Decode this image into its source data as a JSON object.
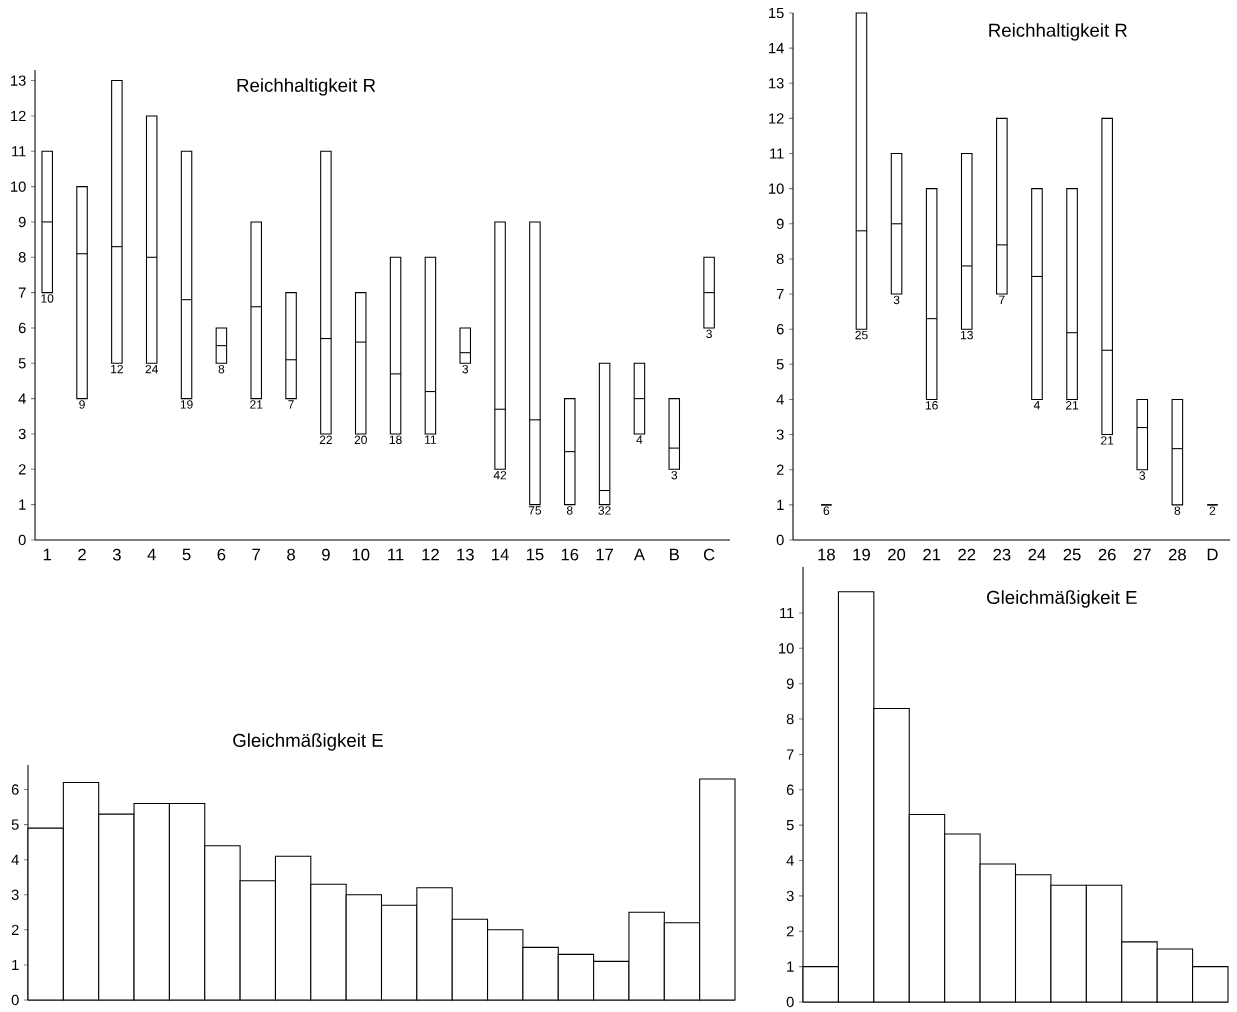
{
  "chart_data": [
    {
      "type": "box",
      "title": "Reichhaltigkeit R",
      "categories": [
        "1",
        "2",
        "3",
        "4",
        "5",
        "6",
        "7",
        "8",
        "9",
        "10",
        "11",
        "12",
        "13",
        "14",
        "15",
        "16",
        "17",
        "A",
        "B",
        "C"
      ],
      "boxes": [
        {
          "low": 7,
          "q1": 7,
          "median": 9.0,
          "q3": 11,
          "high": 11
        },
        {
          "low": 4,
          "q1": 4,
          "median": 8.1,
          "q3": 10,
          "high": 10
        },
        {
          "low": 5,
          "q1": 5,
          "median": 8.3,
          "q3": 13,
          "high": 13
        },
        {
          "low": 5,
          "q1": 5,
          "median": 8.0,
          "q3": 12,
          "high": 12
        },
        {
          "low": 4,
          "q1": 4,
          "median": 6.8,
          "q3": 11,
          "high": 11
        },
        {
          "low": 5,
          "q1": 5,
          "median": 5.5,
          "q3": 6,
          "high": 6
        },
        {
          "low": 4,
          "q1": 4,
          "median": 6.6,
          "q3": 9,
          "high": 9
        },
        {
          "low": 4,
          "q1": 4,
          "median": 5.1,
          "q3": 7,
          "high": 7
        },
        {
          "low": 3,
          "q1": 3,
          "median": 5.7,
          "q3": 11,
          "high": 11
        },
        {
          "low": 3,
          "q1": 3,
          "median": 5.6,
          "q3": 7,
          "high": 7
        },
        {
          "low": 3,
          "q1": 3,
          "median": 4.7,
          "q3": 8,
          "high": 8
        },
        {
          "low": 3,
          "q1": 3,
          "median": 4.2,
          "q3": 8,
          "high": 8
        },
        {
          "low": 5,
          "q1": 5,
          "median": 5.3,
          "q3": 6,
          "high": 6
        },
        {
          "low": 2,
          "q1": 2,
          "median": 3.7,
          "q3": 9,
          "high": 9
        },
        {
          "low": 1,
          "q1": 1,
          "median": 3.4,
          "q3": 9,
          "high": 9
        },
        {
          "low": 1,
          "q1": 1,
          "median": 2.5,
          "q3": 4,
          "high": 4
        },
        {
          "low": 1,
          "q1": 1,
          "median": 1.4,
          "q3": 5,
          "high": 5
        },
        {
          "low": 3,
          "q1": 3,
          "median": 4.0,
          "q3": 5,
          "high": 5
        },
        {
          "low": 2,
          "q1": 2,
          "median": 2.6,
          "q3": 4,
          "high": 4
        },
        {
          "low": 6,
          "q1": 6,
          "median": 7.0,
          "q3": 8,
          "high": 8
        }
      ],
      "annotations": [
        {
          "text": "10",
          "x": "1",
          "y": 7
        },
        {
          "text": "9",
          "x": "2",
          "y": 4
        },
        {
          "text": "12",
          "x": "3",
          "y": 5
        },
        {
          "text": "24",
          "x": "4",
          "y": 5
        },
        {
          "text": "19",
          "x": "5",
          "y": 4
        },
        {
          "text": "8",
          "x": "6",
          "y": 5
        },
        {
          "text": "21",
          "x": "7",
          "y": 4
        },
        {
          "text": "7",
          "x": "8",
          "y": 4
        },
        {
          "text": "22",
          "x": "9",
          "y": 3
        },
        {
          "text": "20",
          "x": "10",
          "y": 3
        },
        {
          "text": "18",
          "x": "11",
          "y": 3
        },
        {
          "text": "11",
          "x": "12",
          "y": 3
        },
        {
          "text": "3",
          "x": "13",
          "y": 5
        },
        {
          "text": "42",
          "x": "14",
          "y": 2
        },
        {
          "text": "75",
          "x": "15",
          "y": 1
        },
        {
          "text": "8",
          "x": "16",
          "y": 1
        },
        {
          "text": "32",
          "x": "17",
          "y": 1
        },
        {
          "text": "4",
          "x": "A",
          "y": 3
        },
        {
          "text": "3",
          "x": "B",
          "y": 2
        },
        {
          "text": "3",
          "x": "C",
          "y": 6
        }
      ],
      "ylim": [
        0,
        13.3
      ],
      "yticks": [
        0,
        1,
        2,
        3,
        4,
        5,
        6,
        7,
        8,
        9,
        10,
        11,
        12,
        13
      ]
    },
    {
      "type": "box",
      "title": "Reichhaltigkeit R",
      "categories": [
        "18",
        "19",
        "20",
        "21",
        "22",
        "23",
        "24",
        "25",
        "26",
        "27",
        "28",
        "D"
      ],
      "boxes": [
        {
          "low": 1,
          "q1": 1,
          "median": 1,
          "q3": 1,
          "high": 1
        },
        {
          "low": 6,
          "q1": 6,
          "median": 8.8,
          "q3": 15,
          "high": 15
        },
        {
          "low": 7,
          "q1": 7,
          "median": 9.0,
          "q3": 11,
          "high": 11
        },
        {
          "low": 4,
          "q1": 4,
          "median": 6.3,
          "q3": 10,
          "high": 10
        },
        {
          "low": 6,
          "q1": 6,
          "median": 7.8,
          "q3": 11,
          "high": 11
        },
        {
          "low": 7,
          "q1": 7,
          "median": 8.4,
          "q3": 12,
          "high": 12
        },
        {
          "low": 4,
          "q1": 4,
          "median": 7.5,
          "q3": 10,
          "high": 10
        },
        {
          "low": 4,
          "q1": 4,
          "median": 5.9,
          "q3": 10,
          "high": 10
        },
        {
          "low": 3,
          "q1": 3,
          "median": 5.4,
          "q3": 12,
          "high": 12
        },
        {
          "low": 2,
          "q1": 2,
          "median": 3.2,
          "q3": 4,
          "high": 4
        },
        {
          "low": 1,
          "q1": 1,
          "median": 2.6,
          "q3": 4,
          "high": 4
        },
        {
          "low": 1,
          "q1": 1,
          "median": 1,
          "q3": 1,
          "high": 1
        }
      ],
      "annotations": [
        {
          "text": "6",
          "x": "18",
          "y": 1
        },
        {
          "text": "25",
          "x": "19",
          "y": 6
        },
        {
          "text": "3",
          "x": "20",
          "y": 7
        },
        {
          "text": "16",
          "x": "21",
          "y": 4
        },
        {
          "text": "13",
          "x": "22",
          "y": 6
        },
        {
          "text": "7",
          "x": "23",
          "y": 7
        },
        {
          "text": "4",
          "x": "24",
          "y": 4
        },
        {
          "text": "21",
          "x": "25",
          "y": 4
        },
        {
          "text": "21",
          "x": "26",
          "y": 3
        },
        {
          "text": "3",
          "x": "27",
          "y": 2
        },
        {
          "text": "8",
          "x": "28",
          "y": 1
        },
        {
          "text": "2",
          "x": "D",
          "y": 1
        }
      ],
      "ylim": [
        0,
        15
      ],
      "yticks": [
        0,
        1,
        2,
        3,
        4,
        5,
        6,
        7,
        8,
        9,
        10,
        11,
        12,
        13,
        14,
        15
      ]
    },
    {
      "type": "bar",
      "title": "Gleichmäßigkeit E",
      "categories": [
        null,
        null,
        null,
        null,
        null,
        null,
        null,
        null,
        null,
        null,
        null,
        null,
        null,
        null,
        null,
        null,
        null,
        null,
        null,
        null
      ],
      "values": [
        4.9,
        6.2,
        5.3,
        5.6,
        5.6,
        4.4,
        3.4,
        4.1,
        3.3,
        3.0,
        2.7,
        3.2,
        2.3,
        2.0,
        1.5,
        1.3,
        1.1,
        2.5,
        2.2,
        6.3
      ],
      "color": "#ffffff",
      "ylim": [
        0,
        6.7
      ],
      "yticks": [
        0,
        1,
        2,
        3,
        4,
        5,
        6
      ],
      "tick_labels": "y"
    },
    {
      "type": "bar",
      "title": "Gleichmäßigkeit E",
      "categories": [
        null,
        null,
        null,
        null,
        null,
        null,
        null,
        null,
        null,
        null,
        null,
        null
      ],
      "values": [
        1.0,
        11.6,
        8.3,
        5.3,
        4.75,
        3.9,
        3.6,
        3.3,
        3.3,
        1.7,
        1.5,
        1.0
      ],
      "color": "#ffffff",
      "ylim": [
        0,
        12.3
      ],
      "yticks": [
        0,
        1,
        2,
        3,
        4,
        5,
        6,
        7,
        8,
        9,
        10,
        11
      ],
      "tick_labels": "y"
    }
  ]
}
